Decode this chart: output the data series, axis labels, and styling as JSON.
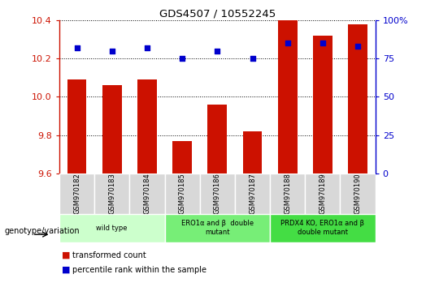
{
  "title": "GDS4507 / 10552245",
  "samples": [
    "GSM970182",
    "GSM970183",
    "GSM970184",
    "GSM970185",
    "GSM970186",
    "GSM970187",
    "GSM970188",
    "GSM970189",
    "GSM970190"
  ],
  "transformed_count": [
    10.09,
    10.06,
    10.09,
    9.77,
    9.96,
    9.82,
    10.4,
    10.32,
    10.38
  ],
  "percentile_rank": [
    82,
    80,
    82,
    75,
    80,
    75,
    85,
    85,
    83
  ],
  "ylim_left": [
    9.6,
    10.4
  ],
  "ylim_right": [
    0,
    100
  ],
  "yticks_left": [
    9.6,
    9.8,
    10.0,
    10.2,
    10.4
  ],
  "yticks_right": [
    0,
    25,
    50,
    75,
    100
  ],
  "bar_color": "#cc1100",
  "dot_color": "#0000cc",
  "grid_color": "#000000",
  "groups": [
    {
      "label": "wild type",
      "start": 0,
      "end": 3,
      "color": "#ccffcc"
    },
    {
      "label": "ERO1α and β  double\nmutant",
      "start": 3,
      "end": 6,
      "color": "#77ee77"
    },
    {
      "label": "PRDX4 KO, ERO1α and β\ndouble mutant",
      "start": 6,
      "end": 9,
      "color": "#44dd44"
    }
  ],
  "legend_bar_label": "transformed count",
  "legend_dot_label": "percentile rank within the sample",
  "xlabel_label": "genotype/variation",
  "bar_width": 0.55,
  "base_value": 9.6
}
